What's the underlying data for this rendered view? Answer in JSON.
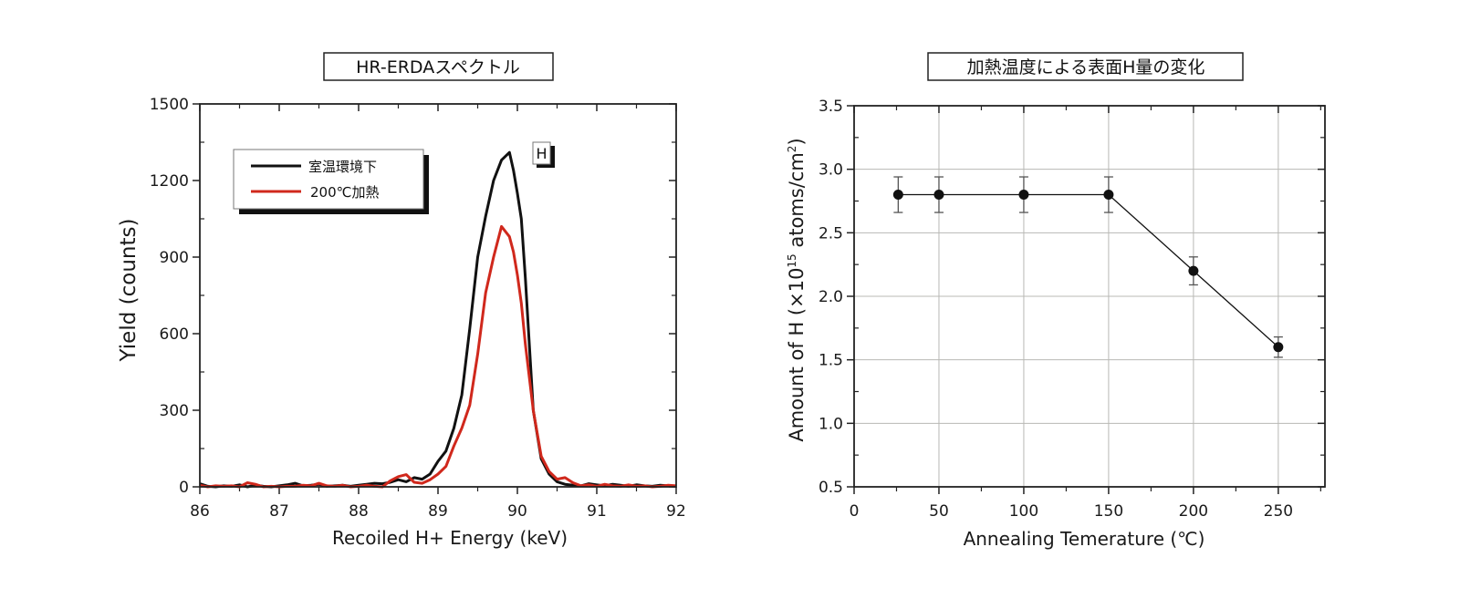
{
  "chart_data": [
    {
      "type": "line",
      "title": "HR-ERDAスペクトル",
      "xlabel": "Recoiled H+ Energy (keV)",
      "ylabel": "Yield (counts)",
      "xlim": [
        86,
        92
      ],
      "ylim": [
        0,
        1500
      ],
      "xticks": [
        "86",
        "87",
        "88",
        "89",
        "90",
        "91",
        "92"
      ],
      "yticks": [
        "0",
        "300",
        "600",
        "900",
        "1200",
        "1500"
      ],
      "grid": false,
      "legend_position": "top-left",
      "annotation": "H",
      "series": [
        {
          "name": "室温環境下",
          "color": "#111111",
          "x": [
            86.0,
            86.1,
            86.2,
            86.3,
            86.4,
            86.5,
            86.6,
            86.7,
            86.8,
            86.9,
            87.0,
            87.1,
            87.2,
            87.3,
            87.4,
            87.5,
            87.6,
            87.7,
            87.8,
            87.9,
            88.0,
            88.1,
            88.2,
            88.3,
            88.4,
            88.5,
            88.6,
            88.7,
            88.8,
            88.9,
            89.0,
            89.1,
            89.2,
            89.3,
            89.4,
            89.5,
            89.6,
            89.7,
            89.8,
            89.9,
            89.95,
            90.0,
            90.05,
            90.1,
            90.2,
            90.3,
            90.4,
            90.5,
            90.6,
            90.7,
            90.8,
            90.9,
            91.0,
            91.1,
            91.2,
            91.3,
            91.4,
            91.5,
            91.6,
            91.7,
            91.8,
            91.9,
            92.0
          ],
          "y": [
            12,
            2,
            0,
            4,
            2,
            8,
            0,
            6,
            2,
            0,
            4,
            8,
            14,
            4,
            6,
            10,
            2,
            4,
            6,
            2,
            6,
            10,
            14,
            12,
            18,
            28,
            20,
            36,
            30,
            50,
            100,
            140,
            230,
            360,
            620,
            900,
            1060,
            1200,
            1280,
            1310,
            1240,
            1150,
            1050,
            820,
            300,
            110,
            50,
            20,
            10,
            6,
            4,
            12,
            8,
            4,
            10,
            6,
            2,
            8,
            4,
            2,
            6,
            4,
            2
          ]
        },
        {
          "name": "200℃加熱",
          "color": "#d0281c",
          "x": [
            86.0,
            86.1,
            86.2,
            86.3,
            86.4,
            86.5,
            86.6,
            86.7,
            86.8,
            86.9,
            87.0,
            87.1,
            87.2,
            87.3,
            87.4,
            87.5,
            87.6,
            87.7,
            87.8,
            87.9,
            88.0,
            88.1,
            88.2,
            88.3,
            88.4,
            88.5,
            88.6,
            88.7,
            88.8,
            88.9,
            89.0,
            89.1,
            89.2,
            89.3,
            89.4,
            89.5,
            89.6,
            89.7,
            89.8,
            89.9,
            89.95,
            90.0,
            90.05,
            90.1,
            90.2,
            90.3,
            90.4,
            90.5,
            90.6,
            90.7,
            90.8,
            90.9,
            91.0,
            91.1,
            91.2,
            91.3,
            91.4,
            91.5,
            91.6,
            91.7,
            91.8,
            91.9,
            92.0
          ],
          "y": [
            6,
            0,
            4,
            2,
            4,
            0,
            16,
            10,
            0,
            2,
            0,
            2,
            2,
            6,
            4,
            14,
            4,
            2,
            6,
            0,
            2,
            6,
            2,
            0,
            24,
            40,
            48,
            18,
            14,
            28,
            50,
            80,
            160,
            230,
            320,
            520,
            760,
            900,
            1020,
            980,
            920,
            830,
            720,
            560,
            300,
            120,
            60,
            30,
            36,
            16,
            4,
            8,
            2,
            10,
            4,
            2,
            8,
            2,
            4,
            0,
            2,
            6,
            4
          ]
        }
      ]
    },
    {
      "type": "line",
      "title": "加熱温度による表面H量の変化",
      "xlabel": "Annealing Temerature (℃)",
      "ylabel_prefix": "Amount of H (×10",
      "ylabel_sup1": "15",
      "ylabel_mid": " atoms/cm",
      "ylabel_sup2": "2",
      "ylabel_suffix": ")",
      "xlim": [
        0,
        277.5
      ],
      "ylim": [
        0.5,
        3.5
      ],
      "xticks": [
        "0",
        "50",
        "100",
        "150",
        "200",
        "250"
      ],
      "yticks": [
        "0.5",
        "1.0",
        "1.5",
        "2.0",
        "2.5",
        "3.0",
        "3.5"
      ],
      "grid": true,
      "series": [
        {
          "name": "Amount of H",
          "color": "#111111",
          "x": [
            26,
            50,
            100,
            150,
            200,
            250
          ],
          "y": [
            2.8,
            2.8,
            2.8,
            2.8,
            2.2,
            1.6
          ],
          "error": [
            0.14,
            0.14,
            0.14,
            0.14,
            0.11,
            0.08
          ]
        }
      ]
    }
  ]
}
